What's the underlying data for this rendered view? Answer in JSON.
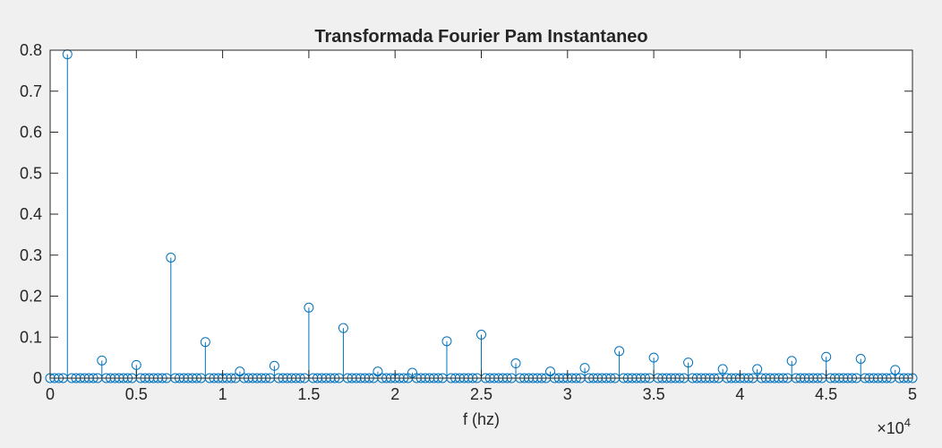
{
  "chart_data": {
    "type": "stem",
    "title": "Transformada Fourier Pam Instantaneo",
    "xlabel": "f (hz)",
    "ylabel": "",
    "xlim": [
      0,
      50000
    ],
    "ylim": [
      0,
      0.8
    ],
    "x_ticks": [
      0,
      5000,
      10000,
      15000,
      20000,
      25000,
      30000,
      35000,
      40000,
      45000,
      50000
    ],
    "x_tick_labels": [
      "0",
      "0.5",
      "1",
      "1.5",
      "2",
      "2.5",
      "3",
      "3.5",
      "4",
      "4.5",
      "5"
    ],
    "x_exponent": {
      "base": "×10",
      "power": "4"
    },
    "y_ticks": [
      0,
      0.1,
      0.2,
      0.3,
      0.4,
      0.5,
      0.6,
      0.7,
      0.8
    ],
    "y_tick_labels": [
      "0",
      "0.1",
      "0.2",
      "0.3",
      "0.4",
      "0.5",
      "0.6",
      "0.7",
      "0.8"
    ],
    "grid": false,
    "colors": {
      "series": "#0072bd",
      "axes": "#262626",
      "plot_bg": "#ffffff",
      "figure_bg": "#f0f0f0"
    },
    "series": [
      {
        "x_start": 0,
        "x_step": 250,
        "count": 201,
        "default_value": 0,
        "peaks": [
          {
            "x": 1000,
            "y": 0.79
          },
          {
            "x": 3000,
            "y": 0.043
          },
          {
            "x": 5000,
            "y": 0.032
          },
          {
            "x": 7000,
            "y": 0.294
          },
          {
            "x": 9000,
            "y": 0.088
          },
          {
            "x": 11000,
            "y": 0.016
          },
          {
            "x": 13000,
            "y": 0.03
          },
          {
            "x": 15000,
            "y": 0.172
          },
          {
            "x": 17000,
            "y": 0.122
          },
          {
            "x": 19000,
            "y": 0.016
          },
          {
            "x": 21000,
            "y": 0.013
          },
          {
            "x": 23000,
            "y": 0.09
          },
          {
            "x": 25000,
            "y": 0.106
          },
          {
            "x": 27000,
            "y": 0.036
          },
          {
            "x": 29000,
            "y": 0.016
          },
          {
            "x": 31000,
            "y": 0.025
          },
          {
            "x": 33000,
            "y": 0.066
          },
          {
            "x": 35000,
            "y": 0.05
          },
          {
            "x": 37000,
            "y": 0.038
          },
          {
            "x": 39000,
            "y": 0.022
          },
          {
            "x": 41000,
            "y": 0.022
          },
          {
            "x": 43000,
            "y": 0.042
          },
          {
            "x": 45000,
            "y": 0.052
          },
          {
            "x": 47000,
            "y": 0.047
          },
          {
            "x": 49000,
            "y": 0.02
          }
        ]
      }
    ]
  }
}
